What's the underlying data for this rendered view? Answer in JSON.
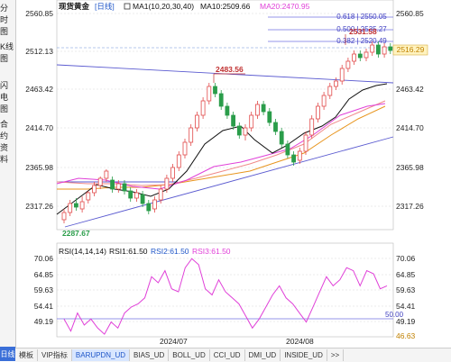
{
  "sidebar": {
    "items": [
      {
        "label": "分时图",
        "chars": [
          "分",
          "时",
          "图"
        ],
        "active": false
      },
      {
        "label": "K线图",
        "chars": [
          "K",
          "线",
          "图"
        ],
        "active": true
      },
      {
        "label": "闪电图",
        "chars": [
          "闪",
          "电",
          "图"
        ],
        "active": false
      },
      {
        "label": "合约资料",
        "chars": [
          "合",
          "约",
          "资",
          "料"
        ],
        "active": false
      }
    ]
  },
  "header": {
    "symbol": "现货黄金",
    "period": "[日线]",
    "ma1": "MA1(10,20,30,40)",
    "ma10": "MA10:2509.66",
    "ma20": "MA20:2470.95"
  },
  "price_axis_right": [
    "2560.85",
    "2463.42",
    "2414.70",
    "2365.98",
    "2317.26"
  ],
  "price_axis_left": [
    "2560.85",
    "2512.13",
    "2463.42",
    "2414.70",
    "2365.98",
    "2317.26"
  ],
  "current_price": "2516.29",
  "fib_levels": [
    "0.618 | 2550.05",
    "0.500 | 2535.27",
    "0.382 | 2520.49"
  ],
  "annotations": {
    "high_mark": "2531.58",
    "mid_mark": "2483.56",
    "low_mark": "2287.67"
  },
  "rsi": {
    "title": "RSI(14,14,14)",
    "rsi1": "RSI1:61.50",
    "rsi2": "RSI2:61.50",
    "rsi3": "RSI3:61.50",
    "axis_left": [
      "70.06",
      "64.85",
      "59.63",
      "54.41",
      "49.19"
    ],
    "axis_right": [
      "70.06",
      "64.85",
      "59.63",
      "54.41",
      "49.19",
      "46.63"
    ],
    "level_label": "50.00",
    "values": [
      50,
      46,
      52,
      48,
      50,
      47,
      45,
      49,
      47,
      52,
      54,
      55,
      57,
      64,
      62,
      66,
      60,
      59,
      67,
      70,
      68,
      60,
      58,
      63,
      59,
      57,
      55,
      51,
      47,
      50,
      54,
      58,
      61,
      57,
      55,
      52,
      49,
      54,
      59,
      64,
      61,
      63,
      67,
      66,
      61,
      66,
      65,
      60,
      61
    ]
  },
  "dates": [
    "2024/07",
    "2024/08"
  ],
  "bottom_bar": {
    "timeframe": "日线",
    "tabs": [
      "模板",
      "VIP指标",
      "BARUPDN_UD",
      "BIAS_UD",
      "BOLL_UD",
      "CCI_UD",
      "DMI_UD",
      "INSIDE_UD",
      ">>"
    ],
    "active_tab": 2
  },
  "colors": {
    "up": "#e24a4a",
    "down": "#2a9d4a",
    "ma10": "#111111",
    "ma20": "#e040d8",
    "ma30": "#e8951e",
    "trend": "#5a5ad0",
    "rsi": "#e040d8",
    "accent": "#1f56c8"
  }
}
